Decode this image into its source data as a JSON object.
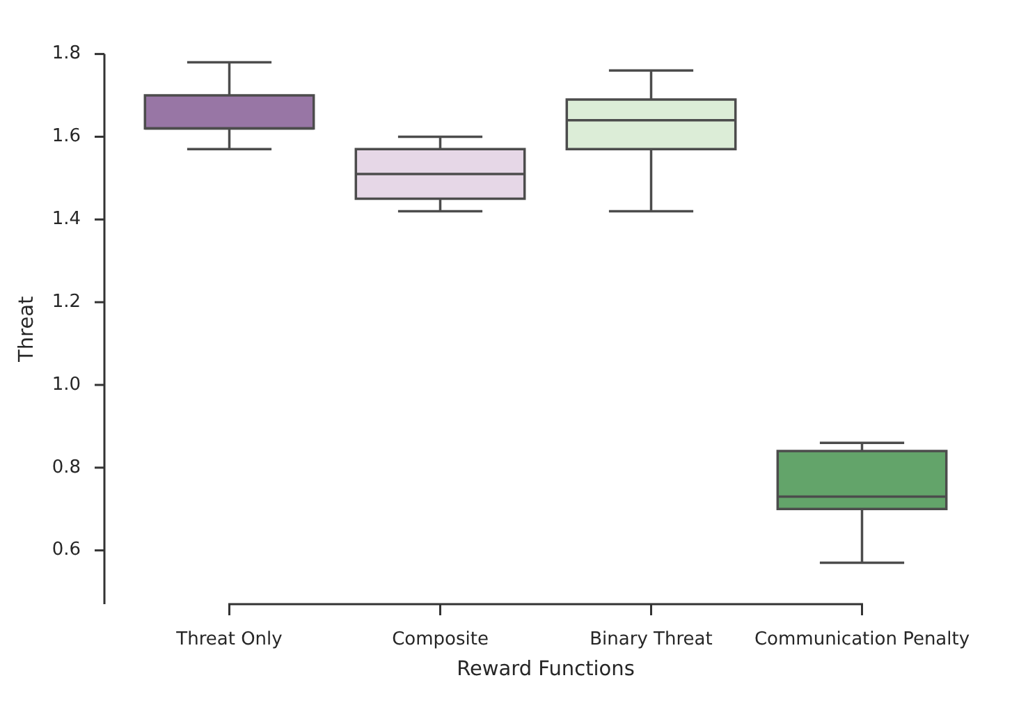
{
  "chart_data": {
    "type": "box",
    "xlabel": "Reward Functions",
    "ylabel": "Threat",
    "categories": [
      "Threat Only",
      "Composite",
      "Binary Threat",
      "Communication Penalty"
    ],
    "colors": [
      "#9876a5",
      "#e6d7e7",
      "#dcedd7",
      "#63a46a"
    ],
    "boxes": [
      {
        "low": 1.57,
        "q1": 1.62,
        "median": 1.62,
        "q3": 1.7,
        "high": 1.78
      },
      {
        "low": 1.42,
        "q1": 1.45,
        "median": 1.51,
        "q3": 1.57,
        "high": 1.6
      },
      {
        "low": 1.42,
        "q1": 1.57,
        "median": 1.64,
        "q3": 1.69,
        "high": 1.76
      },
      {
        "low": 0.57,
        "q1": 0.7,
        "median": 0.73,
        "q3": 0.84,
        "high": 0.86
      }
    ],
    "ylim": [
      0.47,
      1.8
    ],
    "yticks": [
      0.6,
      0.8,
      {
        "value": 1,
        "label": "1.0"
      },
      1.2,
      1.4,
      1.6,
      1.8
    ],
    "grid": false
  }
}
